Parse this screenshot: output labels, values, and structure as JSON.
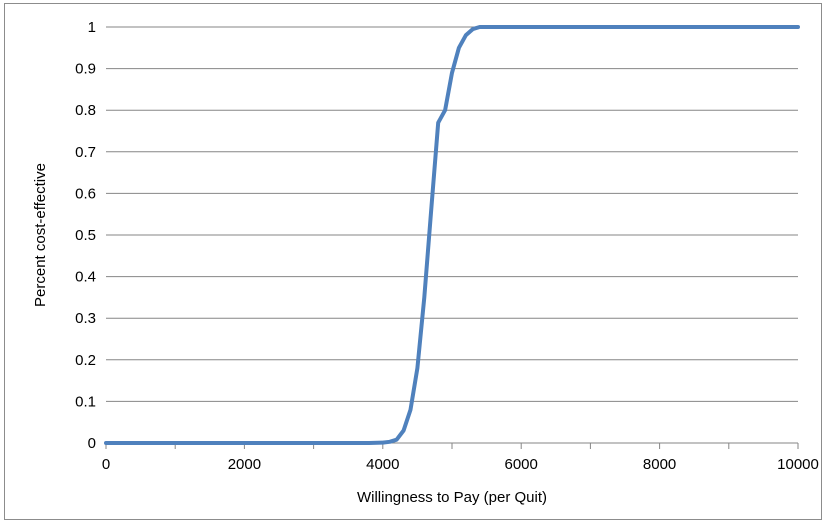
{
  "chart_data": {
    "type": "line",
    "title": "",
    "xlabel": "Willingness to Pay (per Quit)",
    "ylabel": "Percent cost-effective",
    "xlim": [
      0,
      10000
    ],
    "ylim": [
      0,
      1
    ],
    "x_ticks": [
      0,
      2000,
      4000,
      6000,
      8000,
      10000
    ],
    "x_tick_labels": [
      "0",
      "2000",
      "4000",
      "6000",
      "8000",
      "10000"
    ],
    "x_minor_step": 1000,
    "y_ticks": [
      0,
      0.1,
      0.2,
      0.3,
      0.4,
      0.5,
      0.6,
      0.7,
      0.8,
      0.9,
      1
    ],
    "y_tick_labels": [
      "0",
      "0.1",
      "0.2",
      "0.3",
      "0.4",
      "0.5",
      "0.6",
      "0.7",
      "0.8",
      "0.9",
      "1"
    ],
    "grid": "horizontal",
    "legend": "none",
    "line_color": "#4f81bd",
    "series": [
      {
        "x": [
          0,
          1000,
          2000,
          3000,
          3800,
          4000,
          4100,
          4200,
          4300,
          4400,
          4500,
          4600,
          4700,
          4800,
          4900,
          5000,
          5100,
          5200,
          5300,
          5400,
          5500,
          6000,
          7000,
          8000,
          9000,
          10000
        ],
        "y": [
          0,
          0,
          0,
          0,
          0,
          0.001,
          0.003,
          0.008,
          0.03,
          0.08,
          0.18,
          0.35,
          0.56,
          0.77,
          0.8,
          0.89,
          0.95,
          0.98,
          0.995,
          1,
          1,
          1,
          1,
          1,
          1,
          1
        ]
      }
    ]
  }
}
